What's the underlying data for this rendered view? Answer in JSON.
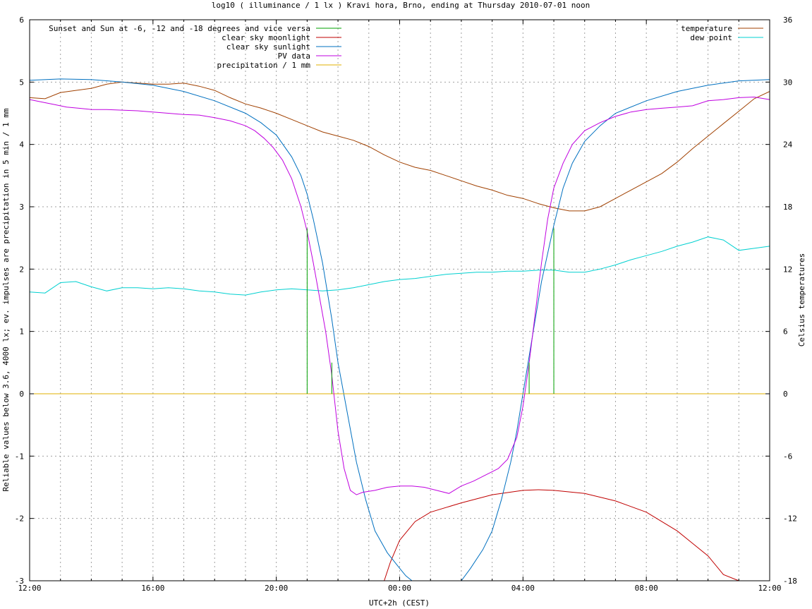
{
  "chart_data": {
    "type": "line",
    "title": "log10 ( illuminance / 1 lx ) Kravi hora, Brno, ending at Thursday 2010-07-01 noon",
    "xlabel": "UTC+2h (CEST)",
    "ylabel": "Reliable values below 3.6, 4000 lx; ev. impulses are precipitation in 5 min / 1 mm",
    "y2label": "Celsius temperatures",
    "xlim": [
      12,
      36
    ],
    "ylim": [
      -3,
      6
    ],
    "y2lim": [
      -18,
      36
    ],
    "x_ticks": [
      12,
      16,
      20,
      24,
      28,
      32,
      36
    ],
    "x_tick_labels": [
      "12:00",
      "16:00",
      "20:00",
      "00:00",
      "04:00",
      "08:00",
      "12:00"
    ],
    "y_ticks": [
      -3,
      -2,
      -1,
      0,
      1,
      2,
      3,
      4,
      5,
      6
    ],
    "y_tick_labels": [
      "-3",
      "-2",
      "-1",
      "0",
      "1",
      "2",
      "3",
      "4",
      "5",
      "6"
    ],
    "y2_ticks": [
      -18,
      -12,
      -6,
      0,
      6,
      12,
      18,
      24,
      30,
      36
    ],
    "y2_tick_labels": [
      "-18",
      "-12",
      "-6",
      "0",
      "6",
      "12",
      "18",
      "24",
      "30",
      "36"
    ],
    "grid": true,
    "legend_left": {
      "placement": "top-left",
      "entries": [
        {
          "label": "Sunset and Sun at -6, -12 and -18 degrees and vice versa",
          "color": "#00a000"
        },
        {
          "label": "clear sky moonlight",
          "color": "#c00000"
        },
        {
          "label": "clear sky sunlight",
          "color": "#0070c0"
        },
        {
          "label": "PV data",
          "color": "#c000e0"
        },
        {
          "label": "precipitation / 1 mm",
          "color": "#e0b000"
        }
      ]
    },
    "legend_right": {
      "placement": "top-right",
      "entries": [
        {
          "label": "temperature",
          "color": "#a04000"
        },
        {
          "label": "dew point",
          "color": "#00d0d0"
        }
      ]
    },
    "sun_markers": {
      "axis": "left",
      "x": [
        21.0,
        21.8,
        22.8,
        27.2,
        28.2,
        29.0
      ],
      "y": [
        2.65,
        0.5,
        0.0,
        0.0,
        0.5,
        2.65
      ]
    },
    "series": [
      {
        "name": "clear sky sunlight",
        "axis": "left",
        "color": "#0070c0",
        "x": [
          12.0,
          13.0,
          14.0,
          15.0,
          16.0,
          17.0,
          18.0,
          19.0,
          19.5,
          20.0,
          20.5,
          20.8,
          21.0,
          21.2,
          21.5,
          21.8,
          22.0,
          22.3,
          22.6,
          22.9,
          23.2,
          23.6,
          24.0,
          24.2,
          24.4,
          26.0,
          26.3,
          26.7,
          27.0,
          27.3,
          27.6,
          27.8,
          28.0,
          28.3,
          28.6,
          29.0,
          29.3,
          29.6,
          30.0,
          30.5,
          31.0,
          32.0,
          33.0,
          34.0,
          35.0,
          36.0
        ],
        "y": [
          5.03,
          5.05,
          5.04,
          5.0,
          4.95,
          4.85,
          4.7,
          4.5,
          4.35,
          4.15,
          3.8,
          3.5,
          3.2,
          2.8,
          2.1,
          1.2,
          0.5,
          -0.3,
          -1.1,
          -1.7,
          -2.2,
          -2.55,
          -2.8,
          -2.92,
          -3.0,
          -3.0,
          -2.8,
          -2.5,
          -2.2,
          -1.7,
          -1.1,
          -0.6,
          0.0,
          0.9,
          1.8,
          2.7,
          3.3,
          3.7,
          4.05,
          4.3,
          4.5,
          4.7,
          4.85,
          4.95,
          5.02,
          5.04
        ]
      },
      {
        "name": "clear sky moonlight",
        "axis": "left",
        "color": "#c00000",
        "x": [
          23.5,
          23.7,
          24.0,
          24.5,
          25.0,
          26.0,
          27.0,
          28.0,
          28.5,
          29.0,
          30.0,
          31.0,
          32.0,
          33.0,
          33.5,
          34.0,
          34.5,
          35.0
        ],
        "y": [
          -3.0,
          -2.7,
          -2.35,
          -2.05,
          -1.9,
          -1.75,
          -1.62,
          -1.55,
          -1.54,
          -1.55,
          -1.6,
          -1.72,
          -1.9,
          -2.2,
          -2.4,
          -2.6,
          -2.9,
          -3.0
        ]
      },
      {
        "name": "PV data",
        "axis": "left",
        "color": "#c000e0",
        "x": [
          12.0,
          12.4,
          12.8,
          13.2,
          13.6,
          14.0,
          14.5,
          15.0,
          15.5,
          16.0,
          16.5,
          17.0,
          17.5,
          18.0,
          18.5,
          19.0,
          19.3,
          19.6,
          19.9,
          20.2,
          20.5,
          20.8,
          21.0,
          21.2,
          21.4,
          21.6,
          21.8,
          22.0,
          22.2,
          22.4,
          22.6,
          22.8,
          23.2,
          23.6,
          24.0,
          24.4,
          24.8,
          25.2,
          25.6,
          26.0,
          26.4,
          26.8,
          27.0,
          27.2,
          27.5,
          27.8,
          28.0,
          28.2,
          28.4,
          28.6,
          28.8,
          29.0,
          29.3,
          29.6,
          30.0,
          30.5,
          31.0,
          31.5,
          32.0,
          32.5,
          33.0,
          33.5,
          34.0,
          34.5,
          35.0,
          35.5,
          36.0
        ],
        "y": [
          4.72,
          4.68,
          4.64,
          4.6,
          4.58,
          4.56,
          4.56,
          4.55,
          4.54,
          4.52,
          4.5,
          4.48,
          4.47,
          4.43,
          4.38,
          4.3,
          4.22,
          4.1,
          3.95,
          3.75,
          3.45,
          3.0,
          2.6,
          2.1,
          1.55,
          1.0,
          0.3,
          -0.6,
          -1.2,
          -1.55,
          -1.62,
          -1.58,
          -1.55,
          -1.5,
          -1.48,
          -1.48,
          -1.5,
          -1.55,
          -1.6,
          -1.48,
          -1.4,
          -1.3,
          -1.25,
          -1.2,
          -1.05,
          -0.7,
          -0.2,
          0.5,
          1.3,
          2.1,
          2.8,
          3.3,
          3.7,
          4.0,
          4.22,
          4.35,
          4.45,
          4.52,
          4.56,
          4.58,
          4.6,
          4.62,
          4.7,
          4.72,
          4.75,
          4.76,
          4.72
        ]
      },
      {
        "name": "precipitation / 1 mm",
        "axis": "left",
        "color": "#e0b000",
        "x": [
          12.0,
          36.0
        ],
        "y": [
          0.0,
          0.0
        ]
      },
      {
        "name": "temperature",
        "axis": "right",
        "color": "#a04000",
        "x": [
          12.0,
          12.5,
          13.0,
          13.5,
          14.0,
          14.5,
          15.0,
          15.5,
          16.0,
          16.5,
          17.0,
          17.5,
          18.0,
          18.5,
          19.0,
          19.5,
          20.0,
          20.5,
          21.0,
          21.5,
          22.0,
          22.5,
          23.0,
          23.5,
          24.0,
          24.5,
          25.0,
          25.5,
          26.0,
          26.5,
          27.0,
          27.5,
          28.0,
          28.5,
          29.0,
          29.5,
          30.0,
          30.5,
          31.0,
          31.5,
          32.0,
          32.5,
          33.0,
          33.5,
          34.0,
          34.5,
          35.0,
          35.5,
          36.0
        ],
        "y": [
          28.5,
          28.4,
          29.0,
          29.2,
          29.4,
          29.8,
          30.0,
          29.9,
          29.8,
          29.8,
          29.9,
          29.6,
          29.2,
          28.5,
          27.9,
          27.5,
          27.0,
          26.4,
          25.8,
          25.2,
          24.8,
          24.4,
          23.8,
          23.0,
          22.3,
          21.8,
          21.5,
          21.0,
          20.5,
          20.0,
          19.6,
          19.1,
          18.8,
          18.3,
          17.9,
          17.6,
          17.6,
          18.0,
          18.8,
          19.6,
          20.4,
          21.2,
          22.3,
          23.6,
          24.8,
          26.0,
          27.2,
          28.4,
          29.1
        ]
      },
      {
        "name": "dew point",
        "axis": "right",
        "color": "#00d0d0",
        "x": [
          12.0,
          12.5,
          13.0,
          13.5,
          14.0,
          14.5,
          15.0,
          15.5,
          16.0,
          16.5,
          17.0,
          17.5,
          18.0,
          18.5,
          19.0,
          19.5,
          20.0,
          20.5,
          21.0,
          21.5,
          22.0,
          22.5,
          23.0,
          23.5,
          24.0,
          24.5,
          25.0,
          25.5,
          26.0,
          26.5,
          27.0,
          27.5,
          28.0,
          28.5,
          29.0,
          29.5,
          30.0,
          30.5,
          31.0,
          31.5,
          32.0,
          32.5,
          33.0,
          33.5,
          34.0,
          34.5,
          35.0,
          35.5,
          36.0
        ],
        "y": [
          9.8,
          9.7,
          10.7,
          10.8,
          10.3,
          9.9,
          10.2,
          10.2,
          10.1,
          10.2,
          10.1,
          9.9,
          9.8,
          9.6,
          9.5,
          9.8,
          10.0,
          10.1,
          10.0,
          9.9,
          10.0,
          10.2,
          10.5,
          10.8,
          11.0,
          11.1,
          11.3,
          11.5,
          11.6,
          11.7,
          11.7,
          11.8,
          11.8,
          11.9,
          11.9,
          11.7,
          11.7,
          12.0,
          12.4,
          12.9,
          13.3,
          13.7,
          14.2,
          14.6,
          15.1,
          14.8,
          13.8,
          14.0,
          14.2
        ]
      }
    ]
  }
}
